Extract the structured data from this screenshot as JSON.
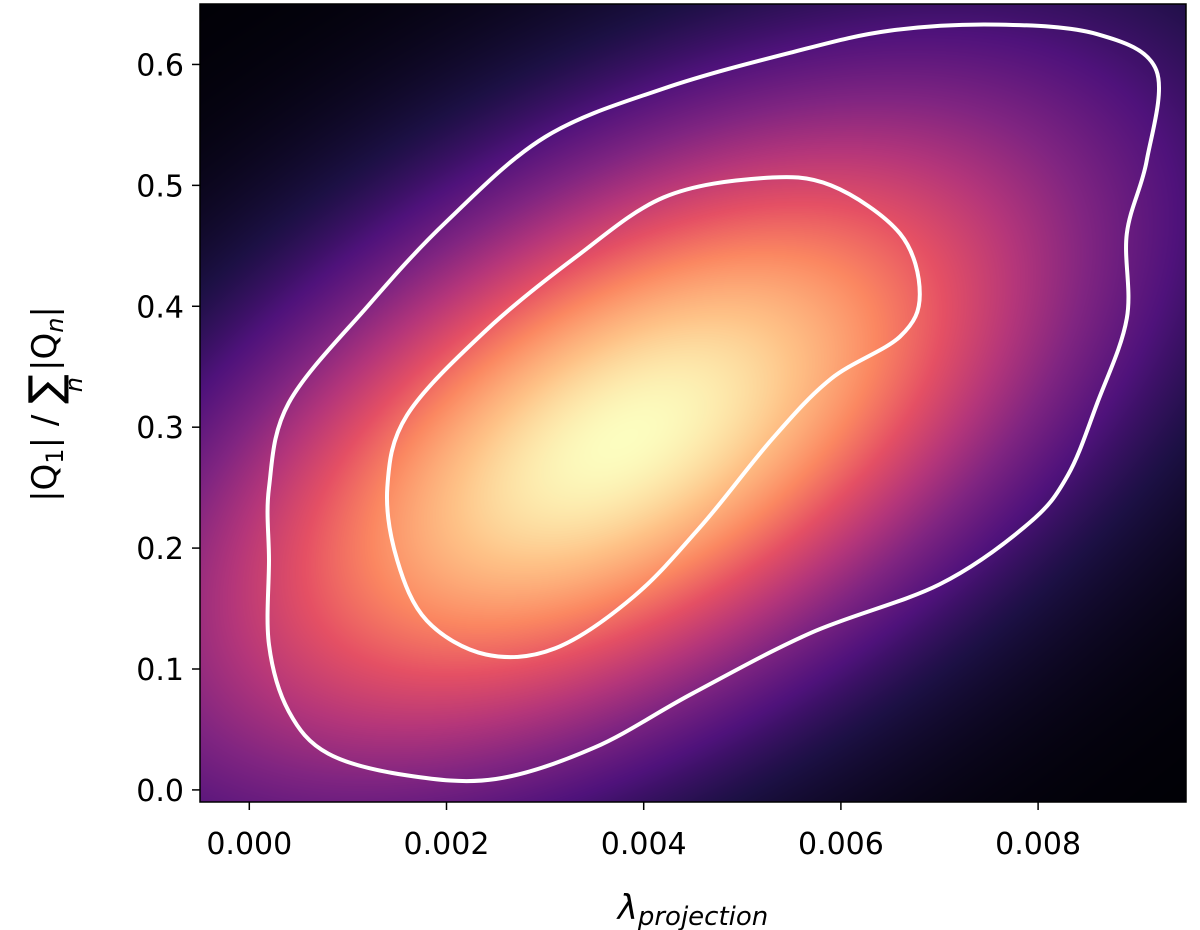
{
  "chart_data": {
    "type": "heatmap",
    "subtype": "2d-kernel-density",
    "title": "",
    "xlabel": {
      "symbol": "λ",
      "subscript": "projection"
    },
    "ylabel": {
      "numerator": "|Q",
      "numerator_sub": "1",
      "numerator_close": "|",
      "separator": " / ",
      "sum_symbol": "∑",
      "sum_index": "n",
      "denominator": "|Q",
      "denominator_sub": "n",
      "denominator_close": "|"
    },
    "xlim": [
      -0.0005,
      0.0095
    ],
    "ylim": [
      -0.01,
      0.65
    ],
    "x_ticks": [
      0.0,
      0.002,
      0.004,
      0.006,
      0.008
    ],
    "x_tick_labels": [
      "0.000",
      "0.002",
      "0.004",
      "0.006",
      "0.008"
    ],
    "y_ticks": [
      0.0,
      0.1,
      0.2,
      0.3,
      0.4,
      0.5,
      0.6
    ],
    "y_tick_labels": [
      "0.0",
      "0.1",
      "0.2",
      "0.3",
      "0.4",
      "0.5",
      "0.6"
    ],
    "grid": false,
    "colormap": "magma",
    "density_peak": {
      "x": 0.0038,
      "y": 0.29
    },
    "contour_color": "#ffffff",
    "contours": [
      {
        "level": "outer",
        "points": [
          [
            0.0002,
            0.25
          ],
          [
            0.0004,
            0.32
          ],
          [
            0.0012,
            0.4
          ],
          [
            0.002,
            0.47
          ],
          [
            0.003,
            0.54
          ],
          [
            0.0042,
            0.58
          ],
          [
            0.0055,
            0.61
          ],
          [
            0.0065,
            0.628
          ],
          [
            0.0076,
            0.633
          ],
          [
            0.0086,
            0.625
          ],
          [
            0.0092,
            0.595
          ],
          [
            0.0091,
            0.52
          ],
          [
            0.0089,
            0.46
          ],
          [
            0.0089,
            0.39
          ],
          [
            0.0086,
            0.32
          ],
          [
            0.0083,
            0.26
          ],
          [
            0.0079,
            0.22
          ],
          [
            0.007,
            0.17
          ],
          [
            0.0057,
            0.13
          ],
          [
            0.0045,
            0.08
          ],
          [
            0.0035,
            0.035
          ],
          [
            0.0025,
            0.009
          ],
          [
            0.0016,
            0.012
          ],
          [
            0.0008,
            0.03
          ],
          [
            0.0004,
            0.065
          ],
          [
            0.0002,
            0.12
          ],
          [
            0.0002,
            0.19
          ]
        ]
      },
      {
        "level": "inner",
        "points": [
          [
            0.0014,
            0.25
          ],
          [
            0.0016,
            0.31
          ],
          [
            0.0024,
            0.38
          ],
          [
            0.0033,
            0.44
          ],
          [
            0.0042,
            0.49
          ],
          [
            0.0052,
            0.506
          ],
          [
            0.0059,
            0.5
          ],
          [
            0.0066,
            0.46
          ],
          [
            0.0068,
            0.41
          ],
          [
            0.0066,
            0.375
          ],
          [
            0.0059,
            0.34
          ],
          [
            0.0053,
            0.29
          ],
          [
            0.0046,
            0.22
          ],
          [
            0.0039,
            0.16
          ],
          [
            0.0031,
            0.117
          ],
          [
            0.0024,
            0.112
          ],
          [
            0.0018,
            0.14
          ],
          [
            0.0015,
            0.19
          ]
        ]
      }
    ]
  }
}
